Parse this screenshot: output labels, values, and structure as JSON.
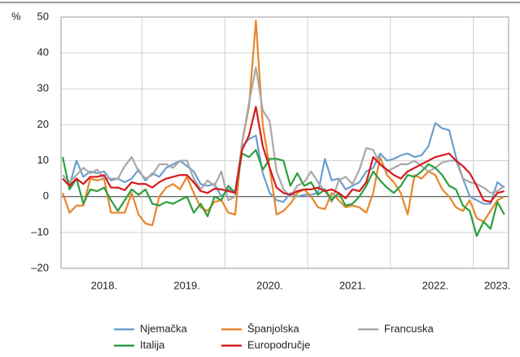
{
  "chart_data": {
    "type": "line",
    "ylabel": "%",
    "categories": [
      null,
      null,
      null,
      null,
      null,
      null,
      "2018.",
      null,
      null,
      null,
      null,
      null,
      null,
      null,
      null,
      null,
      null,
      null,
      "2019.",
      null,
      null,
      null,
      null,
      null,
      null,
      null,
      null,
      null,
      null,
      null,
      "2020.",
      null,
      null,
      null,
      null,
      null,
      null,
      null,
      null,
      null,
      null,
      null,
      "2021.",
      null,
      null,
      null,
      null,
      null,
      null,
      null,
      null,
      null,
      null,
      null,
      "2022.",
      null,
      null,
      null,
      null,
      null,
      null,
      null,
      null,
      "2023.",
      null
    ],
    "series": [
      {
        "name": "Njemačka",
        "color": "#6a9fcf",
        "values": [
          5,
          3,
          10,
          5.5,
          7,
          6.5,
          7,
          4.5,
          5,
          4,
          5,
          7.5,
          4.5,
          6.5,
          5.5,
          8,
          9,
          10,
          8.5,
          7,
          3.5,
          3,
          3.5,
          0,
          2,
          1.5,
          14,
          16,
          17,
          6.5,
          1,
          -1,
          -1.5,
          1,
          0,
          0.5,
          0.5,
          1,
          10.5,
          4.5,
          5,
          2,
          3,
          4,
          7,
          8,
          12,
          10,
          10.5,
          11.5,
          12,
          11,
          11.5,
          14,
          20.5,
          19,
          18.5,
          11,
          5,
          0,
          -1,
          -2,
          -2,
          4,
          2.5
        ]
      },
      {
        "name": "Španjolska",
        "color": "#e8862a",
        "values": [
          1,
          -4.5,
          -2.5,
          -2.5,
          5,
          4.5,
          5,
          -4.5,
          -4.5,
          -4.5,
          1,
          -5,
          -7.5,
          -8,
          0,
          2.5,
          3.5,
          2,
          5.5,
          1,
          -3,
          -4,
          -1.5,
          -1,
          -4.5,
          -5,
          15,
          25,
          49,
          20,
          8,
          -5,
          -4,
          -2,
          1,
          2,
          0,
          -3,
          -3.5,
          1,
          -1,
          -3,
          -2.5,
          -3,
          -4.5,
          1,
          11,
          6,
          4,
          1,
          -5,
          6,
          5,
          7,
          6,
          2,
          0,
          -3,
          -4,
          -1,
          -6,
          -7,
          -4,
          -1,
          0
        ]
      },
      {
        "name": "Francuska",
        "color": "#a8a8a8",
        "values": [
          6,
          4,
          6,
          8,
          6.5,
          7.5,
          5,
          5,
          5,
          8.5,
          11,
          7,
          5,
          6,
          9,
          9,
          8,
          10,
          10,
          5,
          2,
          4.5,
          3,
          7,
          -1,
          0,
          15,
          26,
          36,
          24,
          21,
          7,
          2,
          0,
          3,
          4,
          7,
          4,
          1.5,
          -1.5,
          4.5,
          5.5,
          3.5,
          7.5,
          13.5,
          13,
          9,
          7,
          8,
          9,
          9,
          10,
          8.5,
          7,
          8,
          9.5,
          10,
          10,
          5,
          4,
          3.5,
          2.5,
          1,
          1.5,
          3
        ]
      },
      {
        "name": "Italija",
        "color": "#2e9e3e",
        "values": [
          11,
          2,
          5,
          -2,
          2,
          1.5,
          2.5,
          -1,
          -4,
          -1,
          2,
          0.5,
          2,
          -2,
          -2.5,
          -1.5,
          -2,
          -1,
          0,
          -4.5,
          -2,
          -5.5,
          0,
          -1,
          3,
          1,
          12,
          11,
          13,
          7.5,
          10.5,
          10.5,
          10,
          3,
          6.5,
          3,
          4,
          0.5,
          2,
          -1,
          1,
          -2.5,
          -2,
          0,
          3,
          7,
          4.5,
          2.5,
          1,
          3,
          6,
          5.5,
          7,
          9,
          8,
          6,
          3,
          2,
          -2.5,
          -4,
          -11,
          -7,
          -9,
          -1.5,
          -5
        ]
      },
      {
        "name": "Europodručje",
        "color": "#d7191c",
        "values": [
          5,
          3,
          5,
          3.5,
          5.5,
          5.5,
          6,
          2.5,
          2.5,
          1.8,
          4,
          3.5,
          3.5,
          2.5,
          4,
          5,
          5.5,
          6,
          6,
          4,
          1.5,
          1,
          2.2,
          2,
          1.5,
          1,
          13,
          17,
          25,
          14,
          8,
          2.5,
          1,
          0.5,
          1.5,
          2,
          2,
          2.5,
          1.5,
          2,
          1,
          -0.5,
          2,
          1.5,
          4,
          11,
          9,
          7.5,
          6,
          5,
          7,
          8,
          9,
          10,
          11,
          11.5,
          12,
          10,
          8.5,
          6.5,
          3,
          -1,
          -1.5,
          1,
          1.5
        ]
      }
    ],
    "ylim": [
      -20,
      50
    ],
    "yticks": [
      {
        "value": -20,
        "label": "–20"
      },
      {
        "value": -10,
        "label": "–10"
      },
      0,
      10,
      20,
      30,
      40,
      50
    ],
    "grid": true
  }
}
